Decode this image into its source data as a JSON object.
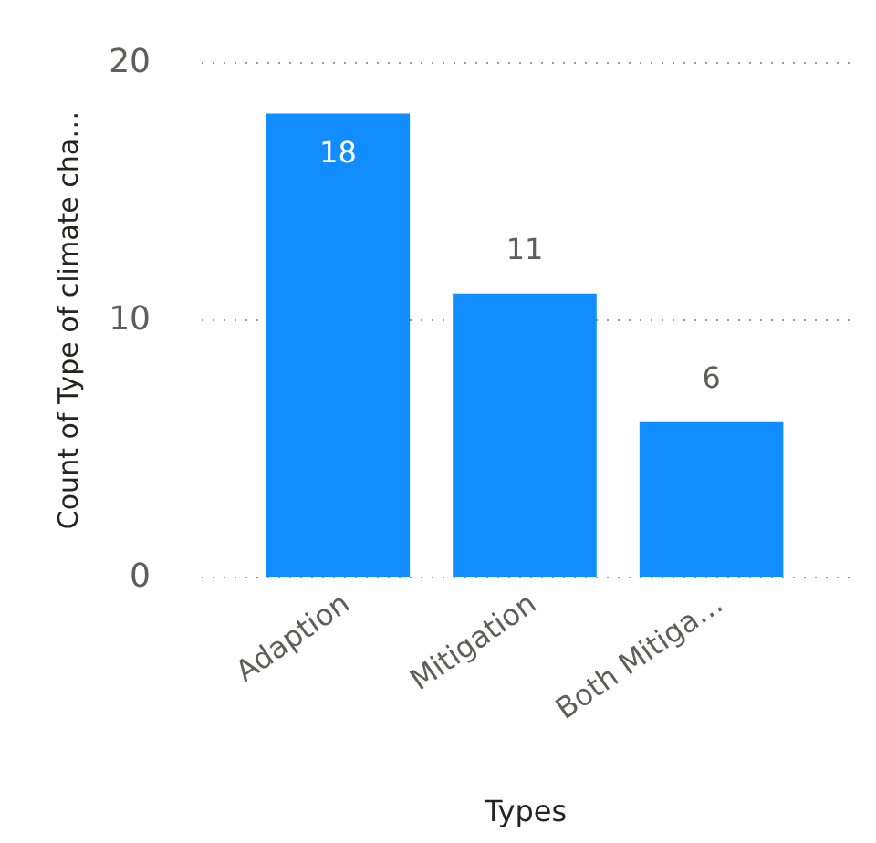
{
  "chart_data": {
    "type": "bar",
    "xlabel": "Types",
    "ylabel": "Count of Type of climate cha…",
    "categories": [
      "Adaption",
      "Mitigation",
      "Both Mitiga…"
    ],
    "values": [
      18,
      11,
      6
    ],
    "color": "#118dff",
    "ylim": [
      0,
      20
    ],
    "yticks": [
      0,
      10,
      20
    ],
    "grid": "y",
    "data_labels": true
  }
}
